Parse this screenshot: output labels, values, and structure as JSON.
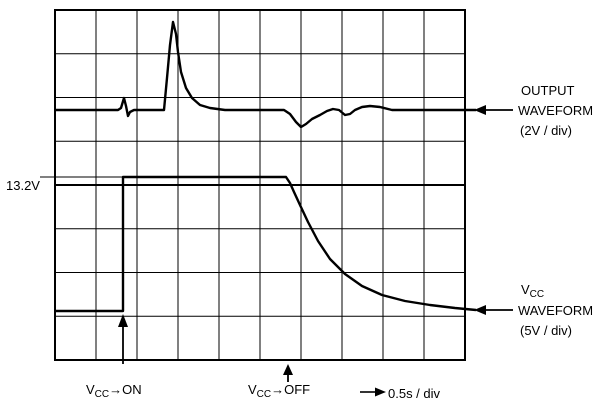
{
  "figure": {
    "output_label": {
      "line1": "OUTPUT",
      "line2": "WAVEFORM",
      "line3": "(2V / div)"
    },
    "vcc_label": {
      "line1_main": "V",
      "line1_sub": "CC",
      "line2": "WAVEFORM",
      "line3": "(5V / div)"
    },
    "level_label": "13.2V",
    "vcc_on": {
      "main": "V",
      "sub": "CC",
      "suffix": "→ON"
    },
    "vcc_off": {
      "main": "V",
      "sub": "CC",
      "suffix": "→OFF"
    },
    "time_scale": "0.5s / div",
    "grid": {
      "columns": 10,
      "rows": 8
    },
    "colors": {
      "ink": "#000000",
      "background": "#ffffff"
    }
  }
}
